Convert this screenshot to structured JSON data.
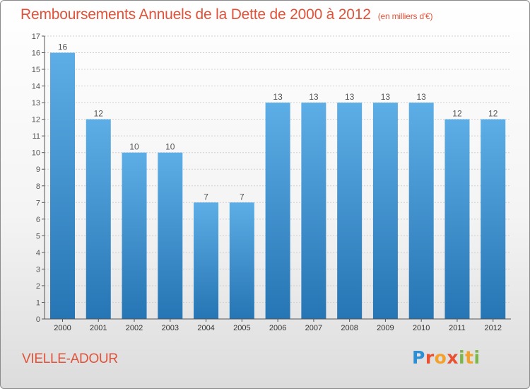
{
  "title": {
    "main": "Remboursements Annuels de la Dette de 2000 à 2012",
    "unit": "(en milliers d'€)"
  },
  "commune": "VIELLE-ADOUR",
  "logo": {
    "text": "Proxiti",
    "letters": [
      "P",
      "r",
      "o",
      "x",
      "i",
      "t",
      "i"
    ],
    "colors": [
      "#2c8fd6",
      "#e8502f",
      "#f3a12a",
      "#7ab648"
    ]
  },
  "colors": {
    "title": "#e0533a",
    "bar_top": "#5dade6",
    "bar_bottom": "#2675b4",
    "grid": "#d0d0d0",
    "axis": "#555555"
  },
  "chart_data": {
    "type": "bar",
    "categories": [
      "2000",
      "2001",
      "2002",
      "2003",
      "2004",
      "2005",
      "2006",
      "2007",
      "2008",
      "2009",
      "2010",
      "2011",
      "2012"
    ],
    "values": [
      16,
      12,
      10,
      10,
      7,
      7,
      13,
      13,
      13,
      13,
      13,
      12,
      12
    ],
    "data_labels": [
      "16",
      "12",
      "10",
      "10",
      "7",
      "7",
      "13",
      "13",
      "13",
      "13",
      "13",
      "12",
      "12"
    ],
    "yticks": [
      "0",
      "1",
      "2",
      "3",
      "4",
      "5",
      "6",
      "7",
      "8",
      "9",
      "10",
      "11",
      "12",
      "13",
      "14",
      "15",
      "16",
      "17"
    ],
    "ylim": [
      0,
      17
    ],
    "grid": true,
    "legend": "none",
    "xlabel": "",
    "ylabel": ""
  }
}
